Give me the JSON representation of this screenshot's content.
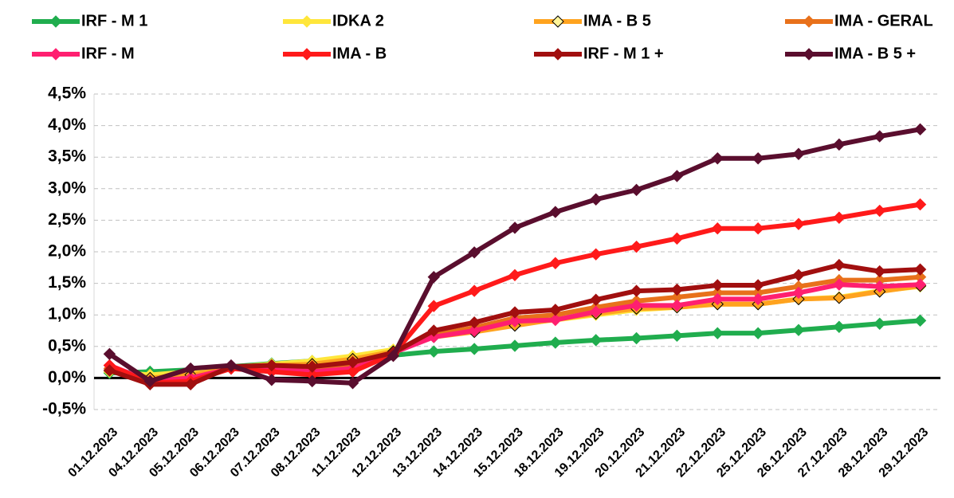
{
  "chart_data": {
    "type": "line",
    "categories": [
      "01.12.2023",
      "04.12.2023",
      "05.12.2023",
      "06.12.2023",
      "07.12.2023",
      "08.12.2023",
      "11.12.2023",
      "12.12.2023",
      "13.12.2023",
      "14.12.2023",
      "15.12.2023",
      "18.12.2023",
      "19.12.2023",
      "20.12.2023",
      "21.12.2023",
      "22.12.2023",
      "25.12.2023",
      "26.12.2023",
      "27.12.2023",
      "28.12.2023",
      "29.12.2023"
    ],
    "ylim": [
      -0.5,
      4.5
    ],
    "yticks": [
      {
        "value": -0.5,
        "label": "-0,5%"
      },
      {
        "value": 0,
        "label": "0,0%"
      },
      {
        "value": 0.5,
        "label": "0,5%"
      },
      {
        "value": 1,
        "label": "1,0%"
      },
      {
        "value": 1.5,
        "label": "1,5%"
      },
      {
        "value": 2,
        "label": "2,0%"
      },
      {
        "value": 2.5,
        "label": "2,5%"
      },
      {
        "value": 3,
        "label": "3,0%"
      },
      {
        "value": 3.5,
        "label": "3,5%"
      },
      {
        "value": 4,
        "label": "4,0%"
      },
      {
        "value": 4.5,
        "label": "4,5%"
      }
    ],
    "grid": true,
    "legend": "top",
    "series": [
      {
        "name": "IRF - M 1",
        "color": "#20ad4e",
        "values": [
          0.08,
          0.1,
          0.13,
          0.18,
          0.23,
          0.27,
          0.3,
          0.36,
          0.42,
          0.46,
          0.51,
          0.56,
          0.6,
          0.63,
          0.67,
          0.71,
          0.71,
          0.76,
          0.81,
          0.86,
          0.91
        ]
      },
      {
        "name": "IDKA 2",
        "color": "#ffe63b",
        "values": [
          0.1,
          0.05,
          0.1,
          0.17,
          0.22,
          0.27,
          0.35,
          0.45,
          0.65,
          0.75,
          0.85,
          0.92,
          1.0,
          1.08,
          1.12,
          1.17,
          1.17,
          1.25,
          1.28,
          1.38,
          1.45
        ]
      },
      {
        "name": "IMA - B 5",
        "color": "#ffa31f",
        "marker_edge": "#000000",
        "values": [
          0.12,
          0.0,
          0.05,
          0.15,
          0.2,
          0.22,
          0.3,
          0.42,
          0.65,
          0.73,
          0.83,
          0.93,
          1.02,
          1.1,
          1.12,
          1.17,
          1.17,
          1.25,
          1.27,
          1.37,
          1.46
        ]
      },
      {
        "name": "IMA - GERAL",
        "color": "#e8711b",
        "values": [
          0.15,
          -0.05,
          0.0,
          0.15,
          0.15,
          0.15,
          0.2,
          0.4,
          0.68,
          0.8,
          0.95,
          1.0,
          1.12,
          1.22,
          1.28,
          1.35,
          1.35,
          1.45,
          1.55,
          1.55,
          1.6
        ]
      },
      {
        "name": "IRF - M",
        "color": "#ff1f70",
        "values": [
          0.2,
          -0.05,
          0.0,
          0.15,
          0.15,
          0.1,
          0.15,
          0.4,
          0.65,
          0.75,
          0.9,
          0.92,
          1.05,
          1.15,
          1.15,
          1.25,
          1.25,
          1.35,
          1.48,
          1.45,
          1.48
        ]
      },
      {
        "name": "IMA - B",
        "color": "#ff1a1a",
        "values": [
          0.2,
          -0.08,
          -0.05,
          0.15,
          0.1,
          0.05,
          0.1,
          0.38,
          1.14,
          1.38,
          1.63,
          1.82,
          1.96,
          2.08,
          2.21,
          2.37,
          2.37,
          2.44,
          2.54,
          2.65,
          2.75
        ]
      },
      {
        "name": "IRF - M 1 +",
        "color": "#a10f0f",
        "values": [
          0.12,
          -0.1,
          -0.1,
          0.18,
          0.2,
          0.18,
          0.25,
          0.4,
          0.75,
          0.88,
          1.04,
          1.08,
          1.24,
          1.38,
          1.4,
          1.47,
          1.47,
          1.63,
          1.79,
          1.69,
          1.72
        ]
      },
      {
        "name": "IMA - B 5 +",
        "color": "#5a0e2e",
        "values": [
          0.38,
          -0.05,
          0.15,
          0.2,
          -0.03,
          -0.05,
          -0.08,
          0.35,
          1.6,
          1.99,
          2.38,
          2.63,
          2.83,
          2.98,
          3.2,
          3.48,
          3.48,
          3.55,
          3.7,
          3.83,
          3.94
        ]
      }
    ]
  }
}
